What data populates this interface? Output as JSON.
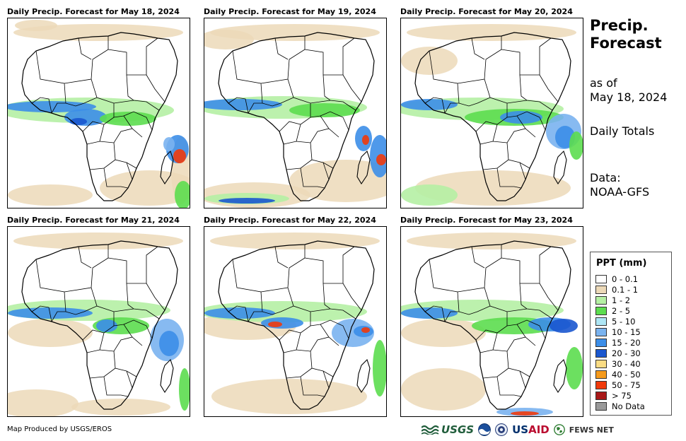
{
  "panels": [
    {
      "title": "Daily Precip. Forecast for May 18, 2024"
    },
    {
      "title": "Daily Precip. Forecast for May 19, 2024"
    },
    {
      "title": "Daily Precip. Forecast for May 20, 2024"
    },
    {
      "title": "Daily Precip. Forecast for May 21, 2024"
    },
    {
      "title": "Daily Precip. Forecast for May 22, 2024"
    },
    {
      "title": "Daily Precip. Forecast for May 23, 2024"
    }
  ],
  "side": {
    "title_line1": "Precip.",
    "title_line2": "Forecast",
    "asof_line1": "as of",
    "asof_line2": "May 18, 2024",
    "totals": "Daily Totals",
    "data_line1": "Data:",
    "data_line2": "NOAA-GFS"
  },
  "legend": {
    "title": "PPT (mm)",
    "items": [
      {
        "label": "0 - 0.1",
        "color": "#ffffff"
      },
      {
        "label": "0.1 - 1",
        "color": "#ecd9b8"
      },
      {
        "label": "1 - 2",
        "color": "#b5f0a4"
      },
      {
        "label": "2 - 5",
        "color": "#5cdd4f"
      },
      {
        "label": "5 - 10",
        "color": "#aee6f5"
      },
      {
        "label": "10 - 15",
        "color": "#7ab3ef"
      },
      {
        "label": "15 - 20",
        "color": "#3c8ee8"
      },
      {
        "label": "20 - 30",
        "color": "#1a57cf"
      },
      {
        "label": "30 - 40",
        "color": "#fadc84"
      },
      {
        "label": "40 - 50",
        "color": "#f59a1c"
      },
      {
        "label": "50 - 75",
        "color": "#f03a0c"
      },
      {
        "label": "> 75",
        "color": "#a81818"
      },
      {
        "label": "No Data",
        "color": "#999999"
      }
    ]
  },
  "footer": {
    "credit": "Map Produced by USGS/EROS",
    "logo_usgs": "USGS",
    "logo_usaid_a": "US",
    "logo_usaid_b": "AID",
    "logo_fews": "FEWS NET"
  },
  "colors": {
    "tan": "#ecd9b8",
    "lightgreen": "#b5f0a4",
    "green": "#5cdd4f",
    "cyan": "#aee6f5",
    "lightblue": "#7ab3ef",
    "blue": "#3c8ee8",
    "darkblue": "#1a57cf",
    "red": "#f03a0c"
  }
}
